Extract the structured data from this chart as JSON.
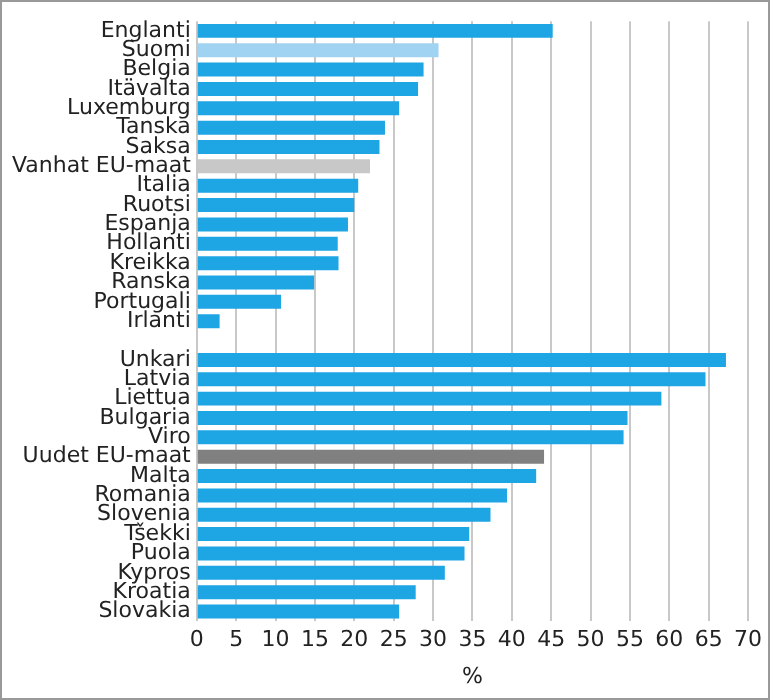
{
  "chart_data": {
    "type": "bar",
    "orientation": "horizontal",
    "xlabel": "%",
    "categories": [
      "Englanti",
      "Suomi",
      "Belgia",
      "Itävalta",
      "Luxemburg",
      "Tanska",
      "Saksa",
      "Vanhat EU-maat",
      "Italia",
      "Ruotsi",
      "Espanja",
      "Hollanti",
      "Kreikka",
      "Ranska",
      "Portugali",
      "Irlanti",
      null,
      "Unkari",
      "Latvia",
      "Liettua",
      "Bulgaria",
      "Viro",
      "Uudet EU-maat",
      "Malta",
      "Romania",
      "Slovenia",
      "Tšekki",
      "Puola",
      "Kypros",
      "Kroatia",
      "Slovakia"
    ],
    "values": [
      45.2,
      30.7,
      28.8,
      28.1,
      25.7,
      23.9,
      23.2,
      22.0,
      20.5,
      20.0,
      19.2,
      17.9,
      18.0,
      14.9,
      10.7,
      2.9,
      null,
      67.2,
      64.6,
      59.0,
      54.7,
      54.2,
      44.1,
      43.1,
      39.4,
      37.3,
      34.6,
      34.0,
      31.5,
      27.8,
      25.7
    ],
    "colors": [
      "#1ea5e3",
      "#a0d2f2",
      "#1ea5e3",
      "#1ea5e3",
      "#1ea5e3",
      "#1ea5e3",
      "#1ea5e3",
      "#c8c8c8",
      "#1ea5e3",
      "#1ea5e3",
      "#1ea5e3",
      "#1ea5e3",
      "#1ea5e3",
      "#1ea5e3",
      "#1ea5e3",
      "#1ea5e3",
      "#1ea5e3",
      "#1ea5e3",
      "#1ea5e3",
      "#1ea5e3",
      "#1ea5e3",
      "#1ea5e3",
      "#808080",
      "#1ea5e3",
      "#1ea5e3",
      "#1ea5e3",
      "#1ea5e3",
      "#1ea5e3",
      "#1ea5e3",
      "#1ea5e3",
      "#1ea5e3"
    ],
    "xlim": [
      0,
      70
    ],
    "xticks": [
      0,
      5,
      10,
      15,
      20,
      25,
      30,
      35,
      40,
      45,
      50,
      55,
      60,
      65,
      70
    ],
    "grid": "x",
    "legend": false
  }
}
